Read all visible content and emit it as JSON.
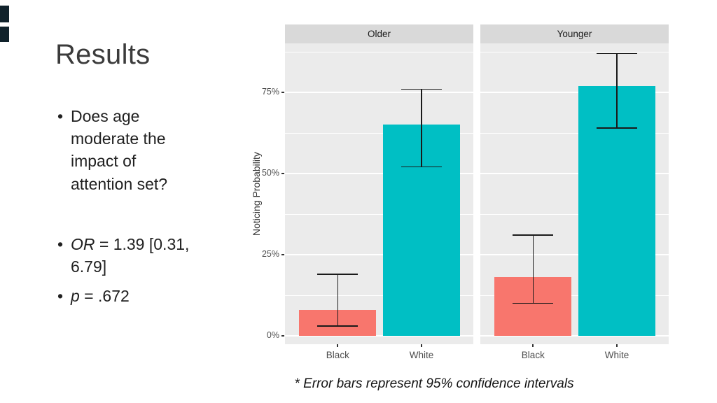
{
  "slide": {
    "title": "Results",
    "bullets": [
      {
        "text": "Does age moderate the impact of attention set?"
      },
      {
        "italic": "OR",
        "rest": " = 1.39 [0.31, 6.79]"
      },
      {
        "italic": "p",
        "rest": " = .672"
      }
    ],
    "caption": "* Error bars represent 95% confidence intervals"
  },
  "chart_data": {
    "type": "bar",
    "title": "",
    "xlabel": "",
    "ylabel": "Noticing Probability",
    "y_ticks": [
      "0%",
      "25%",
      "50%",
      "75%"
    ],
    "y_tick_values": [
      0,
      25,
      50,
      75
    ],
    "y_minor_values": [
      12.5,
      37.5,
      62.5,
      87.5
    ],
    "ylim": [
      0,
      90
    ],
    "grid": "on",
    "legend": "none",
    "categories": [
      "Black",
      "White"
    ],
    "bar_colors": [
      "#F8766D",
      "#00BFC4"
    ],
    "panel_bg": "#EBEBEB",
    "strip_bg": "#D9D9D9",
    "facets": [
      {
        "label": "Older",
        "values": [
          8,
          65
        ],
        "ci_low": [
          3,
          52
        ],
        "ci_high": [
          19,
          76
        ]
      },
      {
        "label": "Younger",
        "values": [
          18,
          77
        ],
        "ci_low": [
          10,
          64
        ],
        "ci_high": [
          31,
          87
        ]
      }
    ],
    "note": "* Error bars represent 95% confidence intervals"
  }
}
